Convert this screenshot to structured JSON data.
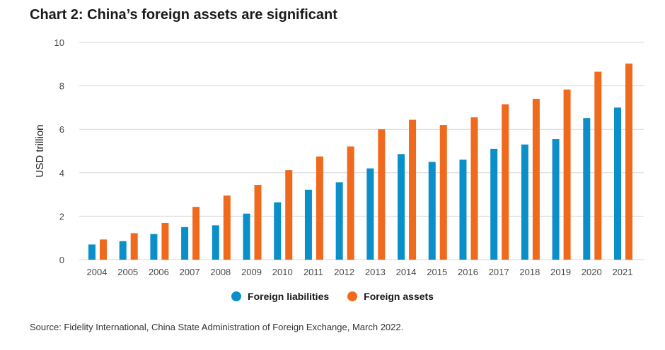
{
  "title": "Chart 2: China’s foreign assets are significant",
  "source": "Source: Fidelity International, China State Administration of Foreign Exchange, March 2022.",
  "colors": {
    "liabilities": "#0a8fc8",
    "assets": "#f06a1e",
    "grid": "#d9d9d9"
  },
  "chart_data": {
    "type": "bar",
    "title": "Chart 2: China’s foreign assets are significant",
    "xlabel": "",
    "ylabel": "USD trillion",
    "ylim": [
      0,
      10
    ],
    "yticks": [
      0,
      2,
      4,
      6,
      8,
      10
    ],
    "grid": true,
    "legend_position": "bottom",
    "categories": [
      "2004",
      "2005",
      "2006",
      "2007",
      "2008",
      "2009",
      "2010",
      "2011",
      "2012",
      "2013",
      "2014",
      "2015",
      "2016",
      "2017",
      "2018",
      "2019",
      "2020",
      "2021"
    ],
    "series": [
      {
        "name": "Foreign liabilities",
        "color": "#0a8fc8",
        "values": [
          0.7,
          0.85,
          1.18,
          1.5,
          1.58,
          2.12,
          2.64,
          3.22,
          3.56,
          4.2,
          4.86,
          4.5,
          4.6,
          5.1,
          5.3,
          5.55,
          6.52,
          7.0
        ]
      },
      {
        "name": "Foreign assets",
        "color": "#f06a1e",
        "values": [
          0.93,
          1.22,
          1.69,
          2.43,
          2.95,
          3.44,
          4.12,
          4.75,
          5.21,
          6.0,
          6.44,
          6.2,
          6.55,
          7.15,
          7.4,
          7.83,
          8.65,
          9.02
        ]
      }
    ]
  }
}
